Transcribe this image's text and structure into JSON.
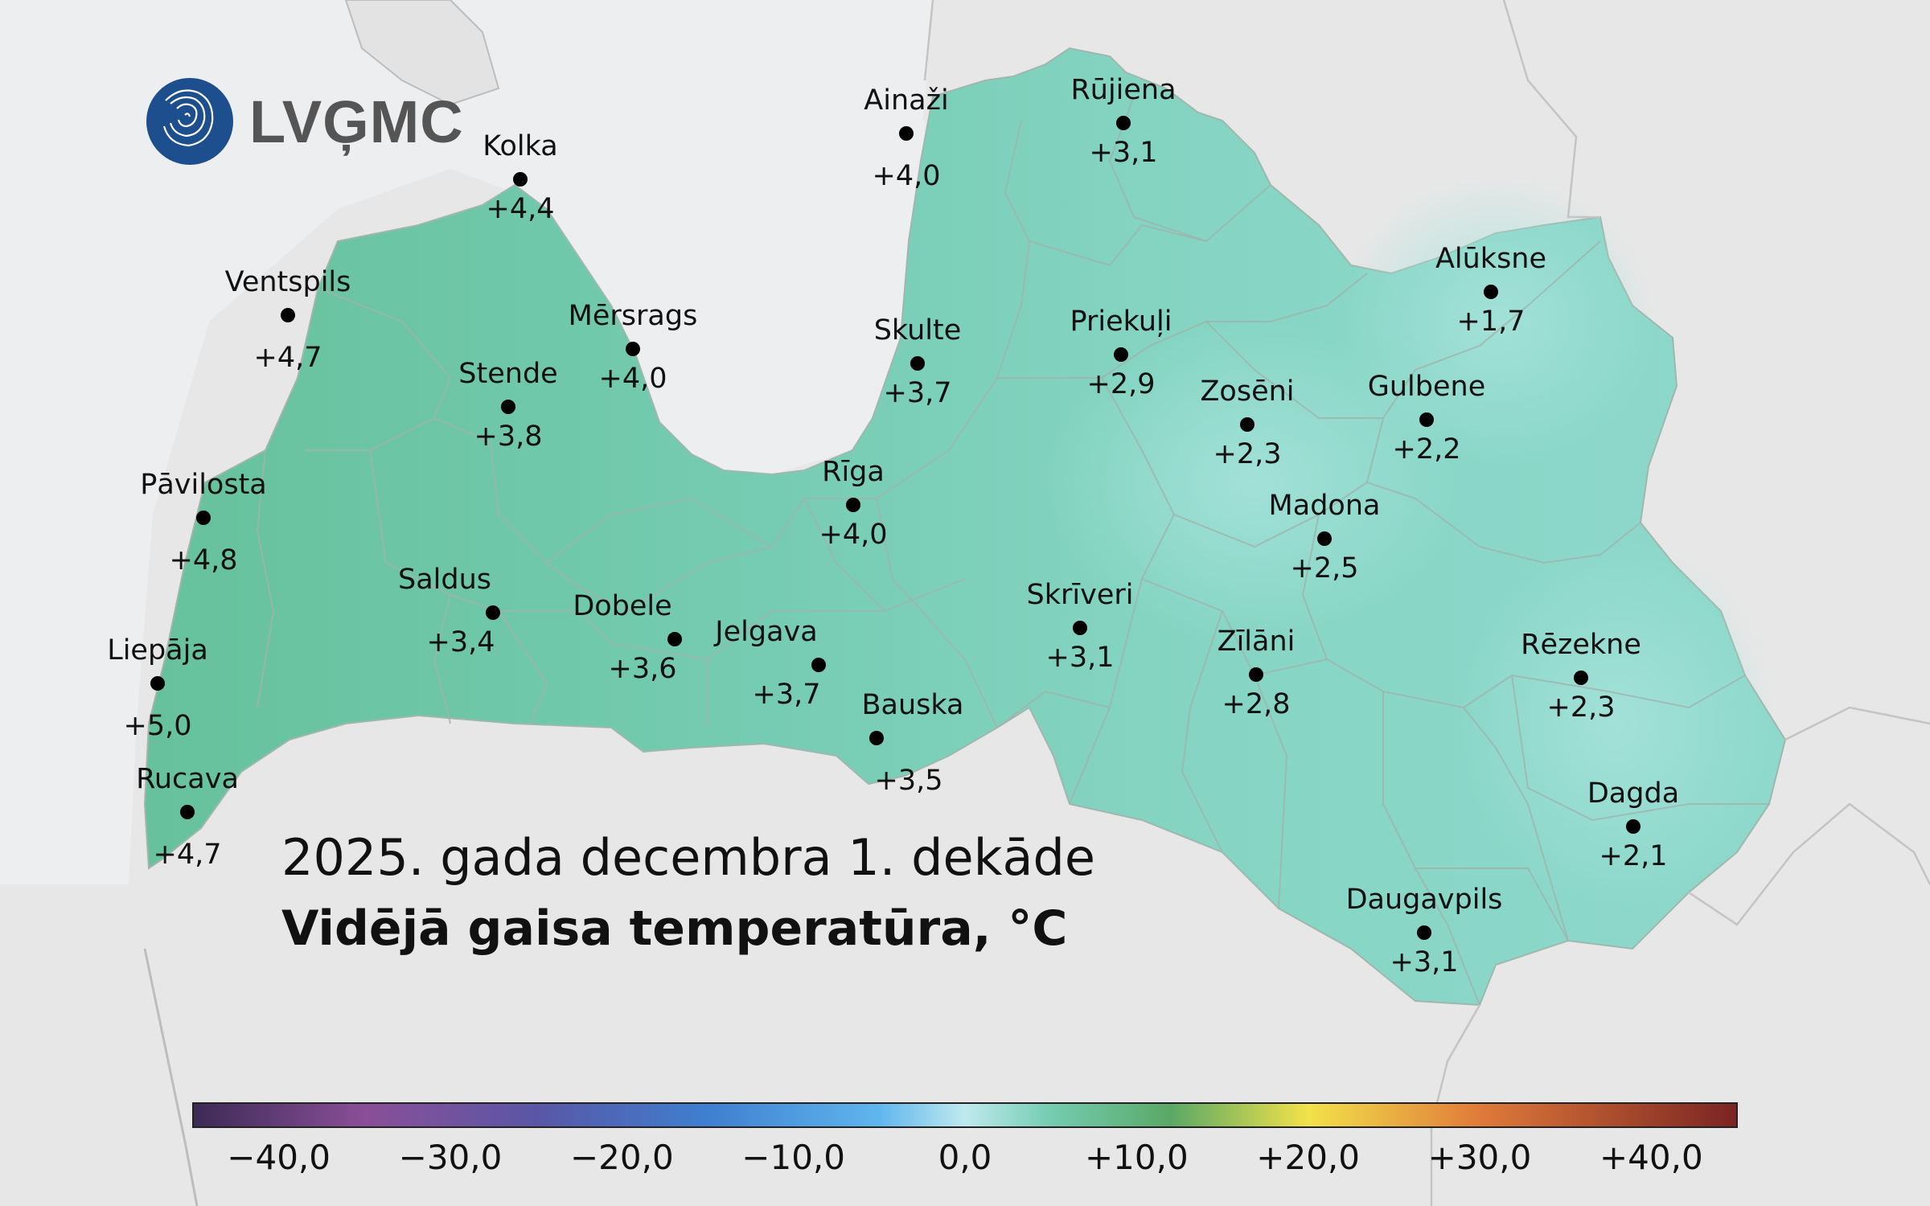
{
  "logo": {
    "text": "LVĢMC",
    "icon": "lvgmc-waves-logo"
  },
  "title": {
    "period": "2025. gada decembra 1. dekāde",
    "parameter": "Vidējā gaisa temperatūra, °C"
  },
  "colors": {
    "sea": "#eceeef",
    "land_outside": "#e3e3e3",
    "latvia_west": "#6cc6a6",
    "latvia_central": "#7dd0b8",
    "latvia_east": "#92dacd",
    "station_dot": "#000000"
  },
  "stations": [
    {
      "name": "Kolka",
      "value": "+4,4"
    },
    {
      "name": "Ventspils",
      "value": "+4,7"
    },
    {
      "name": "Mērsrags",
      "value": "+4,0"
    },
    {
      "name": "Stende",
      "value": "+3,8"
    },
    {
      "name": "Pāvilosta",
      "value": "+4,8"
    },
    {
      "name": "Saldus",
      "value": "+3,4"
    },
    {
      "name": "Liepāja",
      "value": "+5,0"
    },
    {
      "name": "Rucava",
      "value": "+4,7"
    },
    {
      "name": "Dobele",
      "value": "+3,6"
    },
    {
      "name": "Jelgava",
      "value": "+3,7"
    },
    {
      "name": "Bauska",
      "value": "+3,5"
    },
    {
      "name": "Rīga",
      "value": "+4,0"
    },
    {
      "name": "Ainaži",
      "value": "+4,0"
    },
    {
      "name": "Skulte",
      "value": "+3,7"
    },
    {
      "name": "Rūjiena",
      "value": "+3,1"
    },
    {
      "name": "Priekuļi",
      "value": "+2,9"
    },
    {
      "name": "Skrīveri",
      "value": "+3,1"
    },
    {
      "name": "Zosēni",
      "value": "+2,3"
    },
    {
      "name": "Madona",
      "value": "+2,5"
    },
    {
      "name": "Zīlāni",
      "value": "+2,8"
    },
    {
      "name": "Alūksne",
      "value": "+1,7"
    },
    {
      "name": "Gulbene",
      "value": "+2,2"
    },
    {
      "name": "Rēzekne",
      "value": "+2,3"
    },
    {
      "name": "Dagda",
      "value": "+2,1"
    },
    {
      "name": "Daugavpils",
      "value": "+3,1"
    }
  ],
  "color_scale": {
    "min": -45,
    "max": 45,
    "tick_labels": [
      "−40,0",
      "−30,0",
      "−20,0",
      "−10,0",
      "0,0",
      "+10,0",
      "+20,0",
      "+30,0",
      "+40,0"
    ],
    "tick_values": [
      -40,
      -30,
      -20,
      -10,
      0,
      10,
      20,
      30,
      40
    ],
    "stops": [
      {
        "value": -45,
        "color": "#3c2a55"
      },
      {
        "value": -35,
        "color": "#8a4f98"
      },
      {
        "value": -25,
        "color": "#5a56a6"
      },
      {
        "value": -15,
        "color": "#3f7fd0"
      },
      {
        "value": -5,
        "color": "#5fb6ee"
      },
      {
        "value": 0,
        "color": "#bfe9ee"
      },
      {
        "value": 5,
        "color": "#74ccb0"
      },
      {
        "value": 12,
        "color": "#5aa867"
      },
      {
        "value": 20,
        "color": "#f2e24a"
      },
      {
        "value": 30,
        "color": "#e07a3a"
      },
      {
        "value": 45,
        "color": "#7a2323"
      }
    ]
  }
}
